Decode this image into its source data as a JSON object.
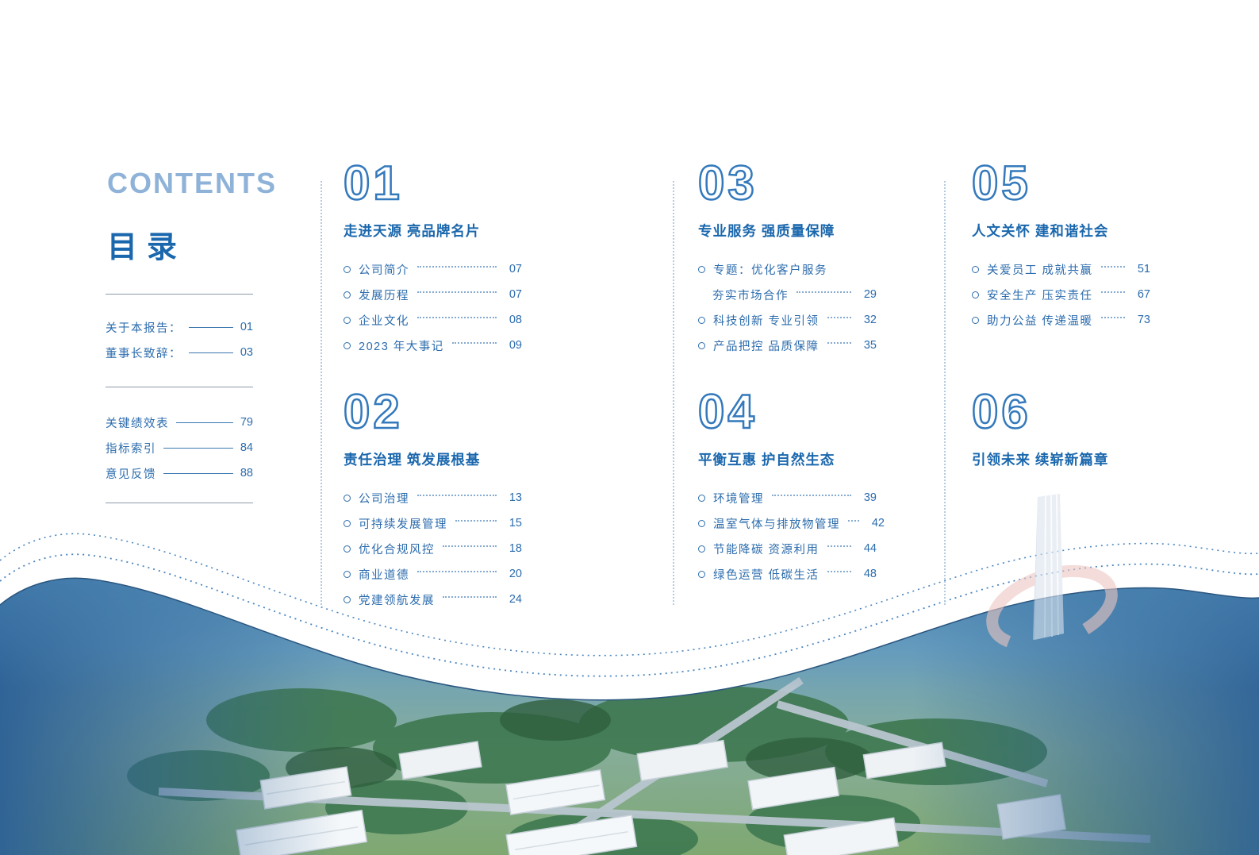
{
  "page": {
    "title_en": "CONTENTS",
    "title_zh": "目录"
  },
  "sidebar": {
    "group1": [
      {
        "label": "关于本报告：",
        "page": "01"
      },
      {
        "label": "董事长致辞：",
        "page": "03"
      }
    ],
    "group2": [
      {
        "label": "关键绩效表",
        "page": "79"
      },
      {
        "label": "指标索引",
        "page": "84"
      },
      {
        "label": "意见反馈",
        "page": "88"
      }
    ]
  },
  "sections": [
    {
      "number": "01",
      "title": "走进天源 亮品牌名片",
      "column": 0,
      "row": 1,
      "items": [
        {
          "label": "公司简介",
          "page": "07",
          "bullet": true
        },
        {
          "label": "发展历程",
          "page": "07",
          "bullet": true
        },
        {
          "label": "企业文化",
          "page": "08",
          "bullet": true
        },
        {
          "label": "2023 年大事记",
          "page": "09",
          "bullet": true
        }
      ]
    },
    {
      "number": "02",
      "title": "责任治理 筑发展根基",
      "column": 0,
      "row": 2,
      "items": [
        {
          "label": "公司治理",
          "page": "13",
          "bullet": true
        },
        {
          "label": "可持续发展管理",
          "page": "15",
          "bullet": true
        },
        {
          "label": "优化合规风控",
          "page": "18",
          "bullet": true
        },
        {
          "label": "商业道德",
          "page": "20",
          "bullet": true
        },
        {
          "label": "党建领航发展",
          "page": "24",
          "bullet": true
        }
      ]
    },
    {
      "number": "03",
      "title": "专业服务 强质量保障",
      "column": 1,
      "row": 1,
      "items": [
        {
          "label": "专题：优化客户服务",
          "page": "",
          "bullet": true
        },
        {
          "label": "夯实市场合作",
          "page": "29",
          "bullet": false
        },
        {
          "label": "科技创新 专业引领",
          "page": "32",
          "bullet": true
        },
        {
          "label": "产品把控 品质保障",
          "page": "35",
          "bullet": true
        }
      ]
    },
    {
      "number": "04",
      "title": "平衡互惠 护自然生态",
      "column": 1,
      "row": 2,
      "items": [
        {
          "label": "环境管理",
          "page": "39",
          "bullet": true
        },
        {
          "label": "温室气体与排放物管理",
          "page": "42",
          "bullet": true
        },
        {
          "label": "节能降碳 资源利用",
          "page": "44",
          "bullet": true
        },
        {
          "label": "绿色运营 低碳生活",
          "page": "48",
          "bullet": true
        }
      ]
    },
    {
      "number": "05",
      "title": "人文关怀 建和谐社会",
      "column": 2,
      "row": 1,
      "items": [
        {
          "label": "关爱员工 成就共赢",
          "page": "51",
          "bullet": true
        },
        {
          "label": "安全生产 压实责任",
          "page": "67",
          "bullet": true
        },
        {
          "label": "助力公益 传递温暖",
          "page": "73",
          "bullet": true
        }
      ]
    },
    {
      "number": "06",
      "title": "引领未来 续崭新篇章",
      "column": 2,
      "row": 2,
      "items": []
    }
  ],
  "icons": {
    "bullet": "circle-bullet-icon",
    "logo": "building-ring-logo-watermark"
  },
  "colors": {
    "heading_light_blue": "#8fb3d8",
    "primary_blue": "#1a67ad",
    "item_blue": "#2c6cad",
    "outline_number_blue": "#3379bc",
    "leader_dot_blue": "#86abd0",
    "divider_gray": "#8a99aa",
    "wave_navy": "#2c6096",
    "logo_pink": "#ecc6c1",
    "logo_tower_blue": "#dbe3ee"
  }
}
